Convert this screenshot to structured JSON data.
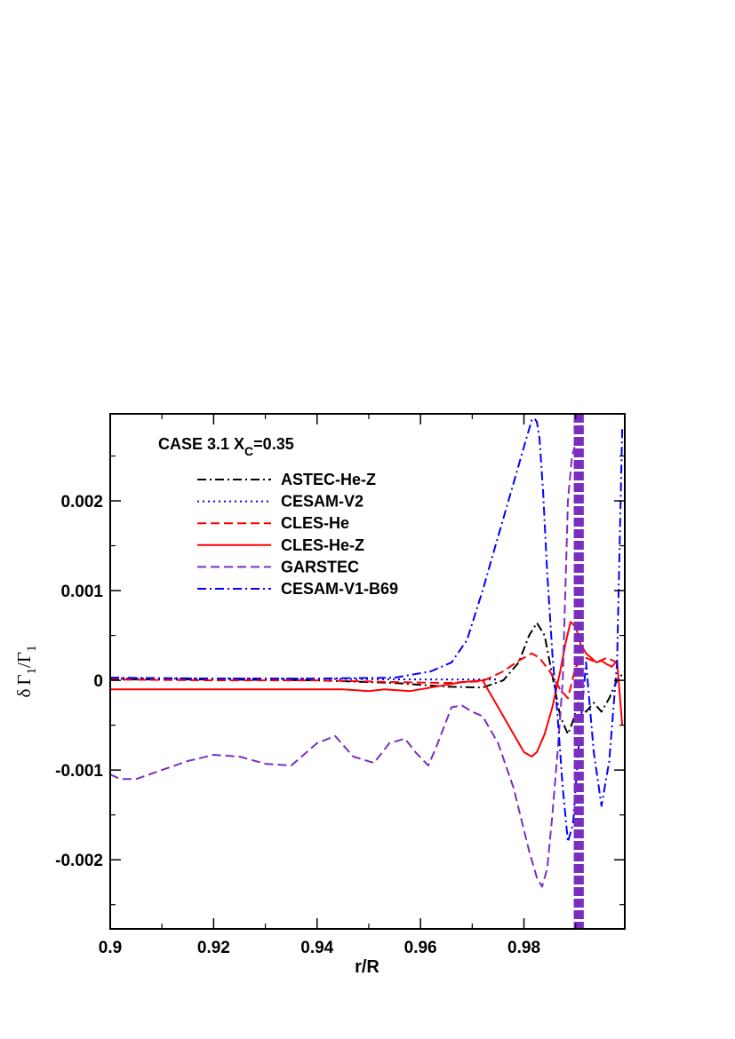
{
  "chart_data": {
    "type": "line",
    "title": "",
    "annotation": {
      "prefix": "CASE 3.1 X",
      "subscript": "C",
      "suffix": "=0.35"
    },
    "xlabel": "r/R",
    "ylabel": {
      "delta": "δ",
      "gamma": "Γ",
      "subscript": "1",
      "slash": "/"
    },
    "xlim": [
      0.9,
      0.9995
    ],
    "ylim": [
      -0.00277,
      0.00297
    ],
    "x_ticks": [
      0.9,
      0.92,
      0.94,
      0.96,
      0.98
    ],
    "x_tick_labels": [
      "0.9",
      "0.92",
      "0.94",
      "0.96",
      "0.98"
    ],
    "y_ticks": [
      0.002,
      0.001,
      0,
      -0.001,
      -0.002
    ],
    "y_tick_labels": [
      "0.002",
      "0.001",
      "0",
      "-0.001",
      "-0.002"
    ],
    "grid": false,
    "legend_position": "top-left",
    "series": [
      {
        "name": "ASTEC-He-Z",
        "color": "#000000",
        "dash": "dashdot",
        "x": [
          0.9,
          0.92,
          0.94,
          0.955,
          0.965,
          0.972,
          0.976,
          0.979,
          0.981,
          0.9825,
          0.984,
          0.9855,
          0.987,
          0.9885,
          0.9895,
          0.9905,
          0.992,
          0.9935,
          0.995,
          0.9965,
          0.998,
          0.9995
        ],
        "y": [
          1e-05,
          1e-05,
          0.0,
          -3e-05,
          -7e-05,
          -8e-05,
          0.0,
          0.0002,
          0.0005,
          0.00064,
          0.0005,
          5e-05,
          -0.0004,
          -0.0006,
          -0.00045,
          -0.00025,
          -0.00035,
          -0.00025,
          -0.00035,
          -0.0002,
          0.0,
          0.0001
        ]
      },
      {
        "name": "CESAM-V2",
        "color": "#0000ff",
        "dash": "dotted",
        "x": [
          0.9,
          0.93,
          0.96,
          0.97,
          0.975
        ],
        "y": [
          2e-05,
          2e-05,
          1e-05,
          1e-05,
          1e-05
        ]
      },
      {
        "name": "CLES-He",
        "color": "#ff0000",
        "dash": "dashed",
        "x": [
          0.9,
          0.92,
          0.94,
          0.955,
          0.965,
          0.972,
          0.976,
          0.979,
          0.9815,
          0.983,
          0.985,
          0.987,
          0.9885,
          0.99,
          0.992,
          0.994,
          0.996,
          0.998
        ],
        "y": [
          1e-05,
          0.0,
          0.0,
          -2e-05,
          -3e-05,
          -1e-05,
          0.0001,
          0.00022,
          0.0003,
          0.00025,
          0.0001,
          -0.0001,
          -0.0002,
          0.00015,
          0.00025,
          0.0002,
          0.00025,
          0.0002
        ]
      },
      {
        "name": "CLES-He-Z",
        "color": "#ff0000",
        "dash": "solid",
        "x": [
          0.9,
          0.92,
          0.935,
          0.945,
          0.95,
          0.953,
          0.958,
          0.962,
          0.965,
          0.968,
          0.97,
          0.972,
          0.974,
          0.976,
          0.978,
          0.98,
          0.9815,
          0.9825,
          0.984,
          0.9855,
          0.987,
          0.988,
          0.989,
          0.99,
          0.991,
          0.992,
          0.993,
          0.994,
          0.995,
          0.996,
          0.997,
          0.998,
          0.999
        ],
        "y": [
          -0.0001,
          -0.0001,
          -0.0001,
          -0.0001,
          -0.00012,
          -0.0001,
          -0.00012,
          -8e-05,
          -5e-05,
          -2e-05,
          -1e-05,
          0.0,
          -0.0002,
          -0.0004,
          -0.0006,
          -0.0008,
          -0.00085,
          -0.0008,
          -0.0006,
          -0.0003,
          0.0001,
          0.0004,
          0.00065,
          0.0006,
          0.0004,
          0.0003,
          0.00025,
          0.0002,
          0.00022,
          0.00018,
          0.00015,
          0.00022,
          -0.0005
        ]
      },
      {
        "name": "GARSTEC",
        "color": "#7b2fbe",
        "dash": "dashed",
        "x": [
          0.9,
          0.902,
          0.905,
          0.91,
          0.915,
          0.92,
          0.925,
          0.93,
          0.935,
          0.94,
          0.9435,
          0.947,
          0.951,
          0.954,
          0.957,
          0.959,
          0.9615,
          0.963,
          0.966,
          0.968,
          0.97,
          0.972,
          0.975,
          0.978,
          0.981,
          0.9825,
          0.9835,
          0.9845,
          0.9855,
          0.9865,
          0.9875,
          0.9885,
          0.9893,
          0.9898
        ],
        "y": [
          -0.00105,
          -0.0011,
          -0.0011,
          -0.001,
          -0.0009,
          -0.00083,
          -0.00085,
          -0.00093,
          -0.00095,
          -0.0007,
          -0.00062,
          -0.00085,
          -0.00092,
          -0.0007,
          -0.00065,
          -0.0008,
          -0.00095,
          -0.00075,
          -0.0003,
          -0.00028,
          -0.00035,
          -0.0004,
          -0.0007,
          -0.0012,
          -0.0019,
          -0.0022,
          -0.0023,
          -0.0021,
          -0.0015,
          -0.0008,
          0.0,
          0.002,
          0.0025,
          0.0026
        ]
      },
      {
        "name": "CESAM-V1-B69",
        "color": "#0000ff",
        "dash": "dashdot",
        "x": [
          0.9,
          0.92,
          0.94,
          0.955,
          0.962,
          0.966,
          0.969,
          0.972,
          0.975,
          0.978,
          0.9805,
          0.9815,
          0.982,
          0.9825,
          0.983,
          0.9837,
          0.9845,
          0.9855,
          0.9865,
          0.9875,
          0.9885,
          0.9895,
          0.9905,
          0.992,
          0.9935,
          0.995,
          0.9965,
          0.998,
          0.999
        ],
        "y": [
          3e-05,
          2e-05,
          2e-05,
          3e-05,
          0.0001,
          0.0002,
          0.00045,
          0.001,
          0.0016,
          0.0022,
          0.0027,
          0.0029,
          0.00292,
          0.00288,
          0.0027,
          0.0021,
          0.0012,
          0.0003,
          -0.0004,
          -0.0012,
          -0.0018,
          -0.0016,
          -0.0008,
          0.0002,
          -0.0008,
          -0.0014,
          -0.0009,
          0.0002,
          0.0028
        ]
      }
    ]
  }
}
